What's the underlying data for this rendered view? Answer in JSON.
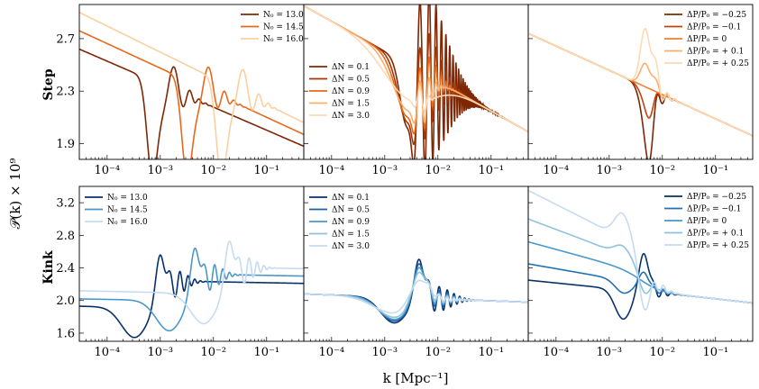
{
  "figure": {
    "ylabel": "𝒫(k) × 10⁹",
    "xlabel": "k [Mpc⁻¹]"
  },
  "row_labels": [
    "Step",
    "Kink"
  ],
  "x_ticks": [
    {
      "value": 0.0001,
      "label": "10⁻⁴"
    },
    {
      "value": 0.001,
      "label": "10⁻³"
    },
    {
      "value": 0.01,
      "label": "10⁻²"
    },
    {
      "value": 0.1,
      "label": "10⁻¹"
    }
  ],
  "chart_data": [
    {
      "type": "line",
      "row": "Step",
      "column": 0,
      "xscale": "log",
      "xlim": [
        3e-05,
        0.5
      ],
      "ylim": [
        1.78,
        2.96
      ],
      "yticks": [
        1.9,
        2.3,
        2.7
      ],
      "ytick_labels": [
        "1.9",
        "2.3",
        "2.7"
      ],
      "legend_position": "top-right",
      "series": [
        {
          "name": "N₀ = 13.0",
          "color": "#7f2704",
          "shape": "step",
          "base": [
            3e-05,
            2.62,
            0.5,
            1.88
          ],
          "feature_k": 0.001,
          "scale": 1.0
        },
        {
          "name": "N₀ = 14.5",
          "color": "#e8681a",
          "shape": "step",
          "base": [
            3e-05,
            2.76,
            0.5,
            1.97
          ],
          "feature_k": 0.0045,
          "scale": 1.0
        },
        {
          "name": "N₀ = 16.0",
          "color": "#fdcfa0",
          "shape": "step",
          "base": [
            3e-05,
            2.9,
            0.5,
            2.06
          ],
          "feature_k": 0.02,
          "scale": 1.0
        }
      ]
    },
    {
      "type": "line",
      "row": "Step",
      "column": 1,
      "xscale": "log",
      "xlim": [
        3e-05,
        0.5
      ],
      "ylim": [
        1.78,
        2.96
      ],
      "yticks": [
        1.9,
        2.3,
        2.7
      ],
      "legend_position": "center-left",
      "series": [
        {
          "name": "ΔN = 0.1",
          "color": "#7f2704",
          "shape": "step_dn",
          "base": [
            3e-05,
            2.95,
            0.5,
            1.99
          ],
          "feature_k": 0.0045,
          "scale": 1.0,
          "dn": 0.1
        },
        {
          "name": "ΔN = 0.5",
          "color": "#a63603",
          "shape": "step_dn",
          "base": [
            3e-05,
            2.95,
            0.5,
            1.99
          ],
          "feature_k": 0.0045,
          "scale": 1.0,
          "dn": 0.5
        },
        {
          "name": "ΔN = 0.9",
          "color": "#e8681a",
          "shape": "step_dn",
          "base": [
            3e-05,
            2.95,
            0.5,
            1.99
          ],
          "feature_k": 0.0045,
          "scale": 1.0,
          "dn": 0.9
        },
        {
          "name": "ΔN = 1.5",
          "color": "#fdae6b",
          "shape": "step_dn",
          "base": [
            3e-05,
            2.95,
            0.5,
            1.99
          ],
          "feature_k": 0.0045,
          "scale": 1.0,
          "dn": 1.5
        },
        {
          "name": "ΔN = 3.0",
          "color": "#fdd9b4",
          "shape": "step_dn",
          "base": [
            3e-05,
            2.95,
            0.5,
            1.99
          ],
          "feature_k": 0.0045,
          "scale": 1.0,
          "dn": 3.0
        }
      ]
    },
    {
      "type": "line",
      "row": "Step",
      "column": 2,
      "xscale": "log",
      "xlim": [
        3e-05,
        0.5
      ],
      "ylim": [
        1.78,
        2.96
      ],
      "yticks": [
        1.9,
        2.3,
        2.7
      ],
      "legend_position": "top-right",
      "series": [
        {
          "name": "ΔP/P₀ = −0.25",
          "color": "#7f2704",
          "shape": "step_amp",
          "base": [
            3e-05,
            2.74,
            0.5,
            1.96
          ],
          "feature_k": 0.0045,
          "amp": -0.25
        },
        {
          "name": "ΔP/P₀ = −0.1",
          "color": "#c0440a",
          "shape": "step_amp",
          "base": [
            3e-05,
            2.74,
            0.5,
            1.96
          ],
          "feature_k": 0.0045,
          "amp": -0.1
        },
        {
          "name": "ΔP/P₀ = 0",
          "color": "#f08030",
          "shape": "step_amp",
          "base": [
            3e-05,
            2.74,
            0.5,
            1.96
          ],
          "feature_k": 0.0045,
          "amp": 0.0
        },
        {
          "name": "ΔP/P₀ = + 0.1",
          "color": "#fdae6b",
          "shape": "step_amp",
          "base": [
            3e-05,
            2.74,
            0.5,
            1.96
          ],
          "feature_k": 0.0045,
          "amp": 0.1
        },
        {
          "name": "ΔP/P₀ = + 0.25",
          "color": "#fdd9b4",
          "shape": "step_amp",
          "base": [
            3e-05,
            2.74,
            0.5,
            1.96
          ],
          "feature_k": 0.0045,
          "amp": 0.25
        }
      ]
    },
    {
      "type": "line",
      "row": "Kink",
      "column": 0,
      "xscale": "log",
      "xlim": [
        3e-05,
        0.5
      ],
      "ylim": [
        1.5,
        3.4
      ],
      "yticks": [
        1.6,
        2.0,
        2.4,
        2.8,
        3.2
      ],
      "ytick_labels": [
        "1.6",
        "2.0",
        "2.4",
        "2.8",
        "3.2"
      ],
      "legend_position": "top-left",
      "series": [
        {
          "name": "N₀ = 13.0",
          "color": "#08306b",
          "shape": "kink",
          "base": [
            3e-05,
            1.93,
            0.5,
            1.88
          ],
          "feature_k": 0.001
        },
        {
          "name": "N₀ = 14.5",
          "color": "#4a98c9",
          "shape": "kink",
          "base": [
            3e-05,
            2.02,
            0.5,
            1.97
          ],
          "feature_k": 0.0045
        },
        {
          "name": "N₀ = 16.0",
          "color": "#c6dbef",
          "shape": "kink",
          "base": [
            3e-05,
            2.12,
            0.5,
            2.06
          ],
          "feature_k": 0.02
        }
      ]
    },
    {
      "type": "line",
      "row": "Kink",
      "column": 1,
      "xscale": "log",
      "xlim": [
        3e-05,
        0.5
      ],
      "ylim": [
        1.5,
        3.4
      ],
      "yticks": [
        1.6,
        2.0,
        2.4,
        2.8,
        3.2
      ],
      "legend_position": "top-left",
      "series": [
        {
          "name": "ΔN = 0.1",
          "color": "#08306b",
          "shape": "kink_dn",
          "base": [
            3e-05,
            2.08,
            0.5,
            1.98
          ],
          "feature_k": 0.0045,
          "dn": 0.1
        },
        {
          "name": "ΔN = 0.5",
          "color": "#1f5fa6",
          "shape": "kink_dn",
          "base": [
            3e-05,
            2.08,
            0.5,
            1.98
          ],
          "feature_k": 0.0045,
          "dn": 0.5
        },
        {
          "name": "ΔN = 0.9",
          "color": "#4a98c9",
          "shape": "kink_dn",
          "base": [
            3e-05,
            2.08,
            0.5,
            1.98
          ],
          "feature_k": 0.0045,
          "dn": 0.9
        },
        {
          "name": "ΔN = 1.5",
          "color": "#8fc2de",
          "shape": "kink_dn",
          "base": [
            3e-05,
            2.08,
            0.5,
            1.98
          ],
          "feature_k": 0.0045,
          "dn": 1.5
        },
        {
          "name": "ΔN = 3.0",
          "color": "#c6dbef",
          "shape": "kink_dn",
          "base": [
            3e-05,
            2.08,
            0.5,
            1.98
          ],
          "feature_k": 0.0045,
          "dn": 3.0
        }
      ]
    },
    {
      "type": "line",
      "row": "Kink",
      "column": 2,
      "xscale": "log",
      "xlim": [
        3e-05,
        0.5
      ],
      "ylim": [
        1.5,
        3.4
      ],
      "yticks": [
        1.6,
        2.0,
        2.4,
        2.8,
        3.2
      ],
      "legend_position": "top-right",
      "series": [
        {
          "name": "ΔP/P₀ = −0.25",
          "color": "#08306b",
          "shape": "kink_amp",
          "base": [
            3e-05,
            2.25,
            0.5,
            1.97
          ],
          "feature_k": 0.0045,
          "amp": -0.25
        },
        {
          "name": "ΔP/P₀ = −0.1",
          "color": "#2171b5",
          "shape": "kink_amp",
          "base": [
            3e-05,
            2.45,
            0.5,
            1.97
          ],
          "feature_k": 0.0045,
          "amp": -0.1
        },
        {
          "name": "ΔP/P₀ = 0",
          "color": "#4a98c9",
          "shape": "kink_amp",
          "base": [
            3e-05,
            2.72,
            0.5,
            1.97
          ],
          "feature_k": 0.0045,
          "amp": 0.0
        },
        {
          "name": "ΔP/P₀ = + 0.1",
          "color": "#8fc2de",
          "shape": "kink_amp",
          "base": [
            3e-05,
            3.0,
            0.5,
            1.97
          ],
          "feature_k": 0.0045,
          "amp": 0.1
        },
        {
          "name": "ΔP/P₀ = + 0.25",
          "color": "#c6dbef",
          "shape": "kink_amp",
          "base": [
            3e-05,
            3.35,
            0.5,
            1.97
          ],
          "feature_k": 0.0045,
          "amp": 0.25
        }
      ]
    }
  ]
}
